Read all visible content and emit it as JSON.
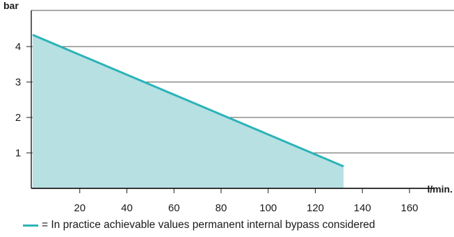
{
  "chart_data": {
    "type": "area",
    "title": "",
    "ylabel": "bar",
    "xlabel": "l/min.",
    "xlim": [
      0,
      180
    ],
    "ylim": [
      0,
      5
    ],
    "x_ticks": [
      20,
      40,
      60,
      80,
      100,
      120,
      140,
      160
    ],
    "y_ticks": [
      1,
      2,
      3,
      4
    ],
    "grid": "horizontal",
    "legend_position": "bottom",
    "series": [
      {
        "name": "= In practice achievable values permanent internal bypass considered",
        "x": [
          0,
          132
        ],
        "y": [
          4.33,
          0.62
        ]
      }
    ]
  },
  "colors": {
    "line": "#2bb3b8",
    "fill": "#b7e0e3",
    "axis": "#1a1a1a",
    "grid": "#555555"
  }
}
